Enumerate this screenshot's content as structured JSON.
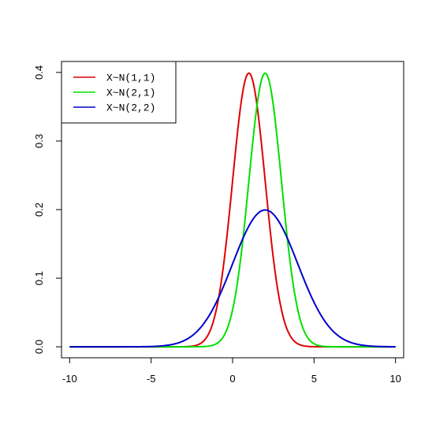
{
  "chart_data": {
    "type": "line",
    "title": "",
    "xlabel": "",
    "ylabel": "",
    "xlim": [
      -10.5,
      10.5
    ],
    "ylim": [
      -0.016,
      0.416
    ],
    "x_ticks": [
      -10,
      -5,
      0,
      5,
      10
    ],
    "y_ticks": [
      0.0,
      0.1,
      0.2,
      0.3,
      0.4
    ],
    "x_tick_labels": [
      "-10",
      "-5",
      "0",
      "5",
      "10"
    ],
    "y_tick_labels": [
      "0.0",
      "0.1",
      "0.2",
      "0.3",
      "0.4"
    ],
    "grid": false,
    "legend_position": "top-left",
    "x_range": [
      -10,
      10
    ],
    "series": [
      {
        "name": "X~N(1,1)",
        "color": "#e00000",
        "mean": 1,
        "sd": 1
      },
      {
        "name": "X~N(2,1)",
        "color": "#00e000",
        "mean": 2,
        "sd": 1
      },
      {
        "name": "X~N(2,2)",
        "color": "#0000cc",
        "mean": 2,
        "sd": 2
      }
    ]
  }
}
